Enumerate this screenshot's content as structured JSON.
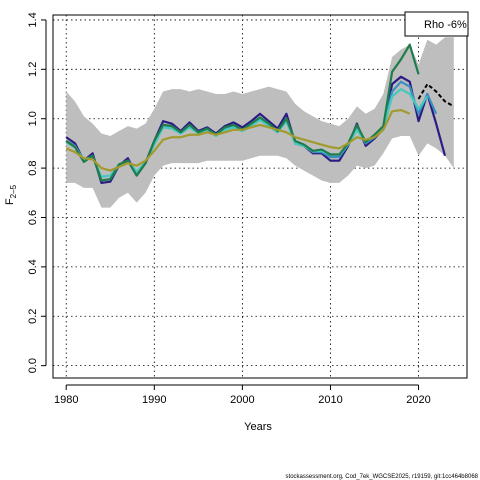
{
  "chart_data": {
    "type": "line",
    "xlabel": "Years",
    "ylabel_main": "F",
    "ylabel_sub": "2–5",
    "xlim": [
      1978.5,
      2025.5
    ],
    "ylim": [
      -0.05,
      1.42
    ],
    "x_ticks": [
      1980,
      1990,
      2000,
      2010,
      2020
    ],
    "y_ticks": [
      0.0,
      0.2,
      0.4,
      0.6,
      0.8,
      1.0,
      1.2,
      1.4
    ],
    "y_tick_labels": [
      "0.0",
      "0.2",
      "0.4",
      "0.6",
      "0.8",
      "1.0",
      "1.2",
      "1.4"
    ],
    "grid": true,
    "legend": {
      "placement": "top-right",
      "text": "Rho -6%"
    },
    "footer": "stockassessment.org, Cod_7ek_WGCSE2025, r19159, git:1cc464b8068",
    "band": {
      "color": "#bebebe",
      "x": [
        1980,
        1981,
        1982,
        1983,
        1984,
        1985,
        1986,
        1987,
        1988,
        1989,
        1990,
        1991,
        1992,
        1993,
        1994,
        1995,
        1996,
        1997,
        1998,
        1999,
        2000,
        2001,
        2002,
        2003,
        2004,
        2005,
        2006,
        2007,
        2008,
        2009,
        2010,
        2011,
        2012,
        2013,
        2014,
        2015,
        2016,
        2017,
        2018,
        2019,
        2020,
        2021,
        2022,
        2023,
        2024
      ],
      "upper": [
        1.11,
        1.07,
        1.01,
        0.98,
        0.94,
        0.93,
        0.95,
        0.97,
        0.96,
        0.98,
        1.04,
        1.11,
        1.12,
        1.12,
        1.11,
        1.12,
        1.11,
        1.1,
        1.1,
        1.11,
        1.1,
        1.11,
        1.12,
        1.13,
        1.12,
        1.11,
        1.06,
        1.03,
        1.01,
        0.99,
        0.98,
        0.97,
        1.0,
        1.05,
        1.02,
        1.04,
        1.1,
        1.25,
        1.28,
        1.3,
        1.22,
        1.32,
        1.3,
        1.33,
        1.33
      ],
      "lower": [
        0.74,
        0.74,
        0.72,
        0.72,
        0.64,
        0.64,
        0.68,
        0.7,
        0.66,
        0.7,
        0.77,
        0.81,
        0.82,
        0.82,
        0.82,
        0.82,
        0.83,
        0.83,
        0.83,
        0.83,
        0.83,
        0.84,
        0.85,
        0.85,
        0.85,
        0.84,
        0.81,
        0.79,
        0.77,
        0.75,
        0.74,
        0.74,
        0.77,
        0.81,
        0.8,
        0.81,
        0.86,
        0.92,
        0.93,
        0.93,
        0.85,
        0.9,
        0.88,
        0.85,
        0.8
      ]
    },
    "series": [
      {
        "color": "#2b1b83",
        "x": [
          1980,
          1981,
          1982,
          1983,
          1984,
          1985,
          1986,
          1987,
          1988,
          1989,
          1990,
          1991,
          1992,
          1993,
          1994,
          1995,
          1996,
          1997,
          1998,
          1999,
          2000,
          2001,
          2002,
          2003,
          2004,
          2005,
          2006,
          2007,
          2008,
          2009,
          2010,
          2011,
          2012,
          2013,
          2014,
          2015,
          2016,
          2017,
          2018,
          2019,
          2020,
          2021,
          2022,
          2023
        ],
        "values": [
          0.925,
          0.9,
          0.83,
          0.86,
          0.74,
          0.745,
          0.81,
          0.84,
          0.77,
          0.82,
          0.91,
          0.99,
          0.98,
          0.95,
          0.985,
          0.95,
          0.965,
          0.94,
          0.97,
          0.985,
          0.965,
          0.99,
          1.02,
          0.99,
          0.96,
          1.02,
          0.9,
          0.89,
          0.86,
          0.86,
          0.83,
          0.83,
          0.89,
          0.98,
          0.89,
          0.92,
          0.96,
          1.14,
          1.17,
          1.15,
          0.99,
          1.1,
          0.98,
          0.85
        ]
      },
      {
        "color": "#3b8fc0",
        "x": [
          1980,
          1981,
          1982,
          1983,
          1984,
          1985,
          1986,
          1987,
          1988,
          1989,
          1990,
          1991,
          1992,
          1993,
          1994,
          1995,
          1996,
          1997,
          1998,
          1999,
          2000,
          2001,
          2002,
          2003,
          2004,
          2005,
          2006,
          2007,
          2008,
          2009,
          2010,
          2011,
          2012,
          2013,
          2014,
          2015,
          2016,
          2017,
          2018,
          2019,
          2020,
          2021,
          2022
        ],
        "values": [
          0.91,
          0.89,
          0.83,
          0.85,
          0.75,
          0.755,
          0.81,
          0.83,
          0.78,
          0.82,
          0.9,
          0.975,
          0.97,
          0.945,
          0.975,
          0.945,
          0.96,
          0.935,
          0.96,
          0.975,
          0.955,
          0.98,
          1.005,
          0.975,
          0.95,
          1.0,
          0.9,
          0.89,
          0.865,
          0.865,
          0.845,
          0.845,
          0.895,
          0.965,
          0.9,
          0.925,
          0.96,
          1.11,
          1.15,
          1.13,
          1.02,
          1.1,
          1.02
        ]
      },
      {
        "color": "#44c8c0",
        "x": [
          1980,
          1981,
          1982,
          1983,
          1984,
          1985,
          1986,
          1987,
          1988,
          1989,
          1990,
          1991,
          1992,
          1993,
          1994,
          1995,
          1996,
          1997,
          1998,
          1999,
          2000,
          2001,
          2002,
          2003,
          2004,
          2005,
          2006,
          2007,
          2008,
          2009,
          2010,
          2011,
          2012,
          2013,
          2014,
          2015,
          2016,
          2017,
          2018,
          2019,
          2020,
          2021
        ],
        "values": [
          0.905,
          0.885,
          0.835,
          0.845,
          0.765,
          0.77,
          0.815,
          0.83,
          0.785,
          0.825,
          0.895,
          0.965,
          0.96,
          0.94,
          0.965,
          0.94,
          0.955,
          0.93,
          0.955,
          0.965,
          0.95,
          0.97,
          0.995,
          0.97,
          0.945,
          0.99,
          0.9,
          0.89,
          0.87,
          0.87,
          0.855,
          0.855,
          0.895,
          0.955,
          0.905,
          0.93,
          0.96,
          1.09,
          1.12,
          1.1,
          1.04,
          1.09
        ]
      },
      {
        "color": "#1e7d4a",
        "x": [
          1980,
          1981,
          1982,
          1983,
          1984,
          1985,
          1986,
          1987,
          1988,
          1989,
          1990,
          1991,
          1992,
          1993,
          1994,
          1995,
          1996,
          1997,
          1998,
          1999,
          2000,
          2001,
          2002,
          2003,
          2004,
          2005,
          2006,
          2007,
          2008,
          2009,
          2010,
          2011,
          2012,
          2013,
          2014,
          2015,
          2016,
          2017,
          2018,
          2019,
          2020
        ],
        "values": [
          0.91,
          0.885,
          0.825,
          0.85,
          0.75,
          0.755,
          0.815,
          0.83,
          0.77,
          0.82,
          0.91,
          0.975,
          0.97,
          0.945,
          0.975,
          0.945,
          0.96,
          0.935,
          0.965,
          0.975,
          0.955,
          0.98,
          1.005,
          0.98,
          0.95,
          1.0,
          0.91,
          0.895,
          0.87,
          0.875,
          0.855,
          0.855,
          0.9,
          0.975,
          0.905,
          0.935,
          0.97,
          1.19,
          1.24,
          1.3,
          1.18
        ]
      },
      {
        "color": "#a39a2e",
        "x": [
          1980,
          1981,
          1982,
          1983,
          1984,
          1985,
          1986,
          1987,
          1988,
          1989,
          1990,
          1991,
          1992,
          1993,
          1994,
          1995,
          1996,
          1997,
          1998,
          1999,
          2000,
          2001,
          2002,
          2003,
          2004,
          2005,
          2006,
          2007,
          2008,
          2009,
          2010,
          2011,
          2012,
          2013,
          2014,
          2015,
          2016,
          2017,
          2018,
          2019
        ],
        "values": [
          0.88,
          0.865,
          0.84,
          0.835,
          0.8,
          0.79,
          0.805,
          0.82,
          0.81,
          0.83,
          0.87,
          0.915,
          0.925,
          0.925,
          0.935,
          0.935,
          0.945,
          0.935,
          0.945,
          0.955,
          0.955,
          0.965,
          0.975,
          0.965,
          0.955,
          0.945,
          0.925,
          0.915,
          0.905,
          0.895,
          0.885,
          0.88,
          0.9,
          0.925,
          0.915,
          0.925,
          0.955,
          1.03,
          1.035,
          1.02
        ]
      },
      {
        "color": "#000000",
        "dashed": true,
        "x": [
          2020,
          2021,
          2022,
          2023,
          2024
        ],
        "values": [
          1.08,
          1.14,
          1.11,
          1.07,
          1.05
        ]
      }
    ]
  }
}
